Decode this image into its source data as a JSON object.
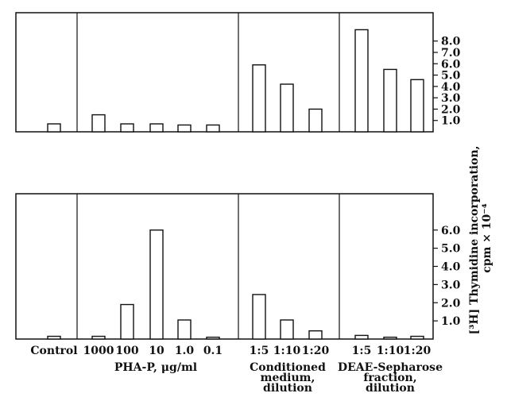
{
  "chart_data": {
    "type": "bar",
    "ylabel_lines": [
      "[³H] Thymidine incorporation,",
      "cpm × 10⁻⁴"
    ],
    "categories": [
      "Control",
      "1000",
      "100",
      "10",
      "1.0",
      "0.1",
      "1:5",
      "1:10",
      "1:20",
      "1:5",
      "1:10",
      "1:20"
    ],
    "groups": [
      {
        "lines": []
      },
      {
        "lines": [
          "PHA-P, μg/ml"
        ]
      },
      {
        "lines": [
          "Conditioned",
          "medium,",
          "dilution"
        ]
      },
      {
        "lines": [
          "DEAE-Sepharose",
          "fraction,",
          "dilution"
        ]
      }
    ],
    "panels": [
      {
        "ylim": [
          0,
          10.5
        ],
        "yticks": [
          "1.0",
          "2.0",
          "3.0",
          "4.0",
          "5.0",
          "6.0",
          "7.0",
          "8.0"
        ],
        "values": [
          0.7,
          1.5,
          0.7,
          0.7,
          0.6,
          0.6,
          5.9,
          4.2,
          2.0,
          9.0,
          5.5,
          4.6
        ]
      },
      {
        "ylim": [
          0,
          8.0
        ],
        "yticks": [
          "1.0",
          "2.0",
          "3.0",
          "4.0",
          "5.0",
          "6.0"
        ],
        "values": [
          0.15,
          0.15,
          1.9,
          6.0,
          1.05,
          0.1,
          2.45,
          1.05,
          0.45,
          0.2,
          0.1,
          0.15
        ]
      }
    ]
  }
}
